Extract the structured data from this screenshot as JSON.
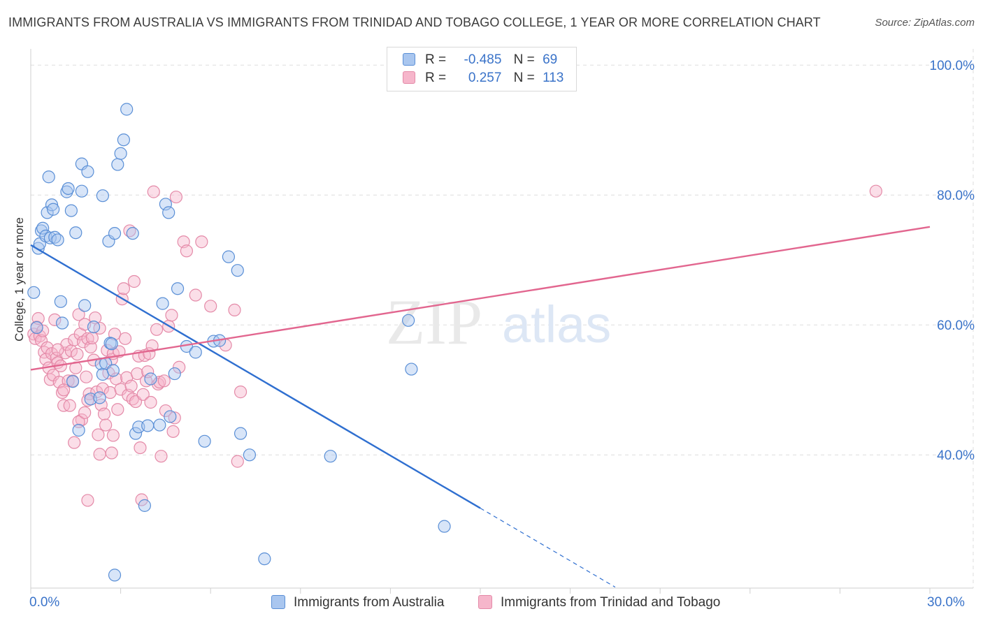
{
  "title": "IMMIGRANTS FROM AUSTRALIA VS IMMIGRANTS FROM TRINIDAD AND TOBAGO COLLEGE, 1 YEAR OR MORE CORRELATION CHART",
  "source": "Source: ZipAtlas.com",
  "watermark": {
    "zip": "ZIP",
    "atlas": "atlas"
  },
  "legend": {
    "australia": {
      "r_label": "R =",
      "r_value": "-0.485",
      "n_label": "N =",
      "n_value": "69"
    },
    "trinidad": {
      "r_label": "R =",
      "r_value": "0.257",
      "n_label": "N =",
      "n_value": "113"
    }
  },
  "colors": {
    "australia_fill": "#a9c6ef",
    "australia_stroke": "#5a8fd6",
    "australia_line": "#2f6fd0",
    "trinidad_fill": "#f6b6cb",
    "trinidad_stroke": "#e48aa8",
    "trinidad_line": "#e2668f",
    "tick_text": "#3a73c9",
    "grid": "#dddddd"
  },
  "chart_data": {
    "type": "scatter",
    "title": "IMMIGRANTS FROM AUSTRALIA VS IMMIGRANTS FROM TRINIDAD AND TOBAGO COLLEGE, 1 YEAR OR MORE CORRELATION CHART",
    "xlabel": "",
    "ylabel": "College, 1 year or more",
    "xlim": [
      0,
      30
    ],
    "ylim": [
      19.5,
      102.5
    ],
    "x_tick_labels": {
      "min": "0.0%",
      "max": "30.0%"
    },
    "y_ticks": [
      {
        "value": 40,
        "label": "40.0%"
      },
      {
        "value": 60,
        "label": "60.0%"
      },
      {
        "value": 80,
        "label": "80.0%"
      },
      {
        "value": 100,
        "label": "100.0%"
      }
    ],
    "series": [
      {
        "name": "Immigrants from Australia",
        "r": -0.485,
        "n": 69,
        "trend": {
          "x0": 0.0,
          "y0": 72.3,
          "x1": 15.0,
          "y1": 31.8,
          "dash_to_x": 19.5
        },
        "points": [
          [
            0.1,
            65.0
          ],
          [
            0.2,
            59.6
          ],
          [
            0.25,
            71.8
          ],
          [
            0.3,
            72.5
          ],
          [
            0.35,
            74.5
          ],
          [
            0.4,
            74.9
          ],
          [
            0.5,
            73.7
          ],
          [
            0.55,
            77.3
          ],
          [
            0.6,
            82.8
          ],
          [
            0.65,
            73.4
          ],
          [
            0.7,
            78.5
          ],
          [
            0.75,
            77.8
          ],
          [
            0.8,
            73.5
          ],
          [
            0.9,
            73.1
          ],
          [
            1.0,
            63.6
          ],
          [
            1.05,
            60.3
          ],
          [
            1.2,
            80.5
          ],
          [
            1.25,
            81.0
          ],
          [
            1.35,
            77.6
          ],
          [
            1.4,
            51.3
          ],
          [
            1.5,
            74.2
          ],
          [
            1.6,
            43.8
          ],
          [
            1.7,
            80.6
          ],
          [
            1.7,
            84.8
          ],
          [
            1.8,
            63.0
          ],
          [
            1.9,
            83.6
          ],
          [
            2.0,
            48.6
          ],
          [
            2.1,
            59.7
          ],
          [
            2.3,
            48.8
          ],
          [
            2.35,
            54.0
          ],
          [
            2.4,
            52.4
          ],
          [
            2.4,
            79.9
          ],
          [
            2.5,
            54.1
          ],
          [
            2.6,
            72.9
          ],
          [
            2.65,
            57.2
          ],
          [
            2.7,
            57.1
          ],
          [
            2.75,
            53.0
          ],
          [
            2.8,
            74.1
          ],
          [
            2.9,
            84.7
          ],
          [
            3.0,
            86.4
          ],
          [
            3.1,
            88.5
          ],
          [
            3.2,
            93.2
          ],
          [
            3.4,
            74.1
          ],
          [
            3.5,
            43.3
          ],
          [
            3.6,
            44.3
          ],
          [
            3.8,
            32.2
          ],
          [
            3.9,
            44.5
          ],
          [
            4.0,
            51.7
          ],
          [
            4.3,
            44.6
          ],
          [
            4.4,
            63.3
          ],
          [
            4.5,
            78.6
          ],
          [
            4.6,
            77.3
          ],
          [
            4.65,
            45.9
          ],
          [
            4.8,
            52.5
          ],
          [
            4.9,
            65.6
          ],
          [
            5.2,
            56.7
          ],
          [
            5.5,
            55.8
          ],
          [
            5.8,
            42.1
          ],
          [
            6.1,
            57.5
          ],
          [
            6.3,
            57.6
          ],
          [
            6.6,
            70.5
          ],
          [
            6.9,
            68.4
          ],
          [
            7.0,
            43.3
          ],
          [
            7.3,
            40.0
          ],
          [
            7.8,
            24.0
          ],
          [
            10.0,
            39.8
          ],
          [
            12.6,
            60.7
          ],
          [
            12.7,
            53.2
          ],
          [
            13.8,
            29.0
          ],
          [
            2.8,
            21.5
          ]
        ]
      },
      {
        "name": "Immigrants from Trinidad and Tobago",
        "r": 0.257,
        "n": 113,
        "trend": {
          "x0": 0.0,
          "y0": 53.1,
          "x1": 30.0,
          "y1": 75.1
        },
        "points": [
          [
            0.1,
            58.6
          ],
          [
            0.15,
            57.9
          ],
          [
            0.2,
            59.7
          ],
          [
            0.25,
            61.0
          ],
          [
            0.3,
            58.3
          ],
          [
            0.35,
            57.6
          ],
          [
            0.4,
            59.1
          ],
          [
            0.45,
            55.8
          ],
          [
            0.5,
            54.7
          ],
          [
            0.55,
            56.5
          ],
          [
            0.6,
            53.4
          ],
          [
            0.65,
            51.6
          ],
          [
            0.7,
            55.6
          ],
          [
            0.75,
            52.3
          ],
          [
            0.8,
            60.8
          ],
          [
            0.85,
            54.9
          ],
          [
            0.9,
            54.2
          ],
          [
            0.95,
            51.2
          ],
          [
            1.0,
            53.7
          ],
          [
            1.05,
            49.6
          ],
          [
            1.1,
            47.6
          ],
          [
            1.15,
            55.7
          ],
          [
            1.2,
            57.0
          ],
          [
            1.25,
            51.4
          ],
          [
            1.3,
            47.6
          ],
          [
            1.35,
            56.0
          ],
          [
            1.4,
            51.4
          ],
          [
            1.45,
            57.7
          ],
          [
            1.5,
            53.4
          ],
          [
            1.55,
            55.5
          ],
          [
            1.6,
            61.6
          ],
          [
            1.65,
            58.6
          ],
          [
            1.7,
            45.4
          ],
          [
            1.75,
            57.4
          ],
          [
            1.8,
            60.1
          ],
          [
            1.85,
            52.0
          ],
          [
            1.9,
            57.9
          ],
          [
            1.95,
            49.4
          ],
          [
            2.0,
            56.6
          ],
          [
            2.05,
            58.0
          ],
          [
            2.1,
            54.6
          ],
          [
            2.15,
            61.1
          ],
          [
            2.2,
            49.7
          ],
          [
            2.25,
            43.1
          ],
          [
            2.3,
            59.5
          ],
          [
            2.35,
            47.7
          ],
          [
            2.4,
            50.2
          ],
          [
            2.45,
            46.3
          ],
          [
            2.5,
            44.6
          ],
          [
            2.55,
            56.1
          ],
          [
            2.6,
            52.6
          ],
          [
            2.65,
            49.6
          ],
          [
            2.7,
            54.7
          ],
          [
            2.75,
            55.6
          ],
          [
            2.8,
            58.6
          ],
          [
            2.85,
            51.7
          ],
          [
            2.9,
            47.0
          ],
          [
            2.95,
            55.9
          ],
          [
            3.0,
            50.1
          ],
          [
            3.05,
            64.0
          ],
          [
            3.1,
            65.6
          ],
          [
            3.15,
            57.9
          ],
          [
            3.2,
            51.9
          ],
          [
            3.25,
            49.2
          ],
          [
            3.3,
            74.5
          ],
          [
            3.35,
            50.6
          ],
          [
            3.4,
            48.6
          ],
          [
            3.45,
            66.7
          ],
          [
            3.5,
            48.2
          ],
          [
            3.55,
            52.5
          ],
          [
            3.6,
            55.2
          ],
          [
            3.65,
            41.1
          ],
          [
            3.7,
            33.1
          ],
          [
            3.75,
            49.3
          ],
          [
            3.8,
            55.3
          ],
          [
            3.85,
            51.4
          ],
          [
            3.9,
            52.8
          ],
          [
            3.95,
            55.6
          ],
          [
            4.0,
            48.1
          ],
          [
            4.05,
            56.8
          ],
          [
            4.1,
            80.5
          ],
          [
            4.2,
            59.3
          ],
          [
            4.25,
            50.9
          ],
          [
            4.3,
            51.2
          ],
          [
            4.35,
            39.8
          ],
          [
            4.45,
            51.4
          ],
          [
            4.5,
            46.8
          ],
          [
            4.6,
            59.8
          ],
          [
            4.7,
            61.5
          ],
          [
            4.75,
            43.6
          ],
          [
            4.8,
            45.7
          ],
          [
            4.85,
            79.7
          ],
          [
            4.95,
            53.5
          ],
          [
            5.1,
            72.8
          ],
          [
            5.2,
            71.4
          ],
          [
            5.5,
            64.6
          ],
          [
            5.7,
            72.8
          ],
          [
            6.0,
            62.9
          ],
          [
            6.5,
            56.9
          ],
          [
            6.8,
            62.3
          ],
          [
            6.9,
            39.0
          ],
          [
            7.0,
            49.7
          ],
          [
            1.9,
            33.0
          ],
          [
            2.3,
            40.1
          ],
          [
            2.7,
            40.3
          ],
          [
            2.75,
            43.0
          ],
          [
            1.45,
            41.9
          ],
          [
            1.6,
            45.1
          ],
          [
            1.8,
            46.5
          ],
          [
            1.9,
            48.4
          ],
          [
            1.1,
            50.0
          ],
          [
            28.2,
            80.6
          ],
          [
            0.9,
            56.2
          ]
        ]
      }
    ]
  }
}
